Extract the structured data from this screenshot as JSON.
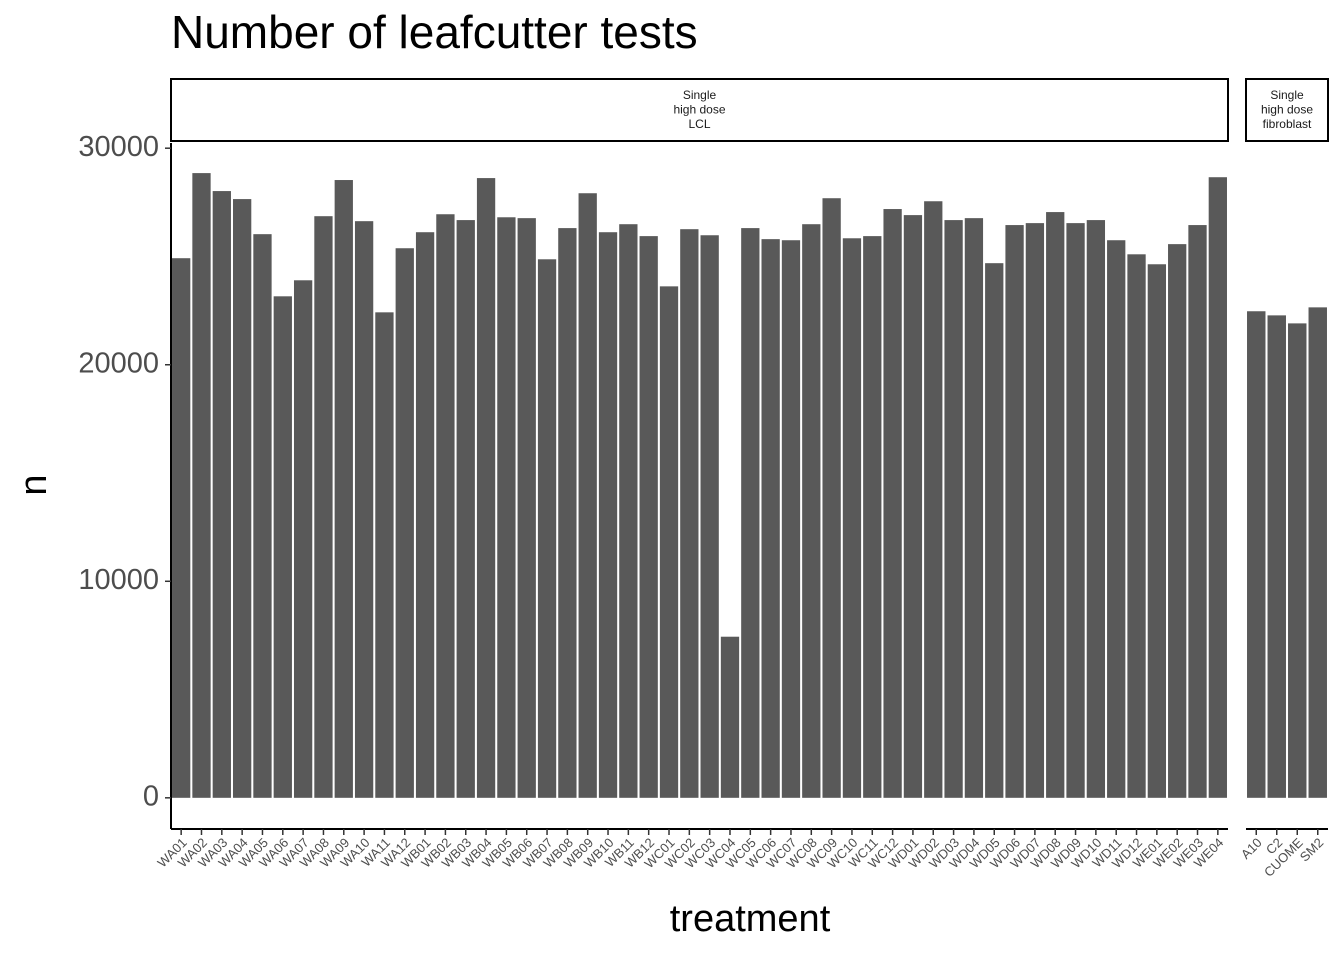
{
  "chart_data": {
    "type": "bar",
    "title": "Number of leafcutter tests",
    "x_label": "treatment",
    "y_label": "n",
    "ylim": [
      -1440,
      30240
    ],
    "yticks": [
      0,
      10000,
      20000,
      30000
    ],
    "color": "#595959",
    "panels": [
      {
        "strip": [
          "Single",
          "high dose",
          "LCL"
        ],
        "categories": [
          "WA01",
          "WA02",
          "WA03",
          "WA04",
          "WA05",
          "WA06",
          "WA07",
          "WA08",
          "WA09",
          "WA10",
          "WA11",
          "WA12",
          "WB01",
          "WB02",
          "WB03",
          "WB04",
          "WB05",
          "WB06",
          "WB07",
          "WB08",
          "WB09",
          "WB10",
          "WB11",
          "WB12",
          "WC01",
          "WC02",
          "WC03",
          "WC04",
          "WC05",
          "WC06",
          "WC07",
          "WC08",
          "WC09",
          "WC10",
          "WC11",
          "WC12",
          "WD01",
          "WD02",
          "WD03",
          "WD04",
          "WD05",
          "WD06",
          "WD07",
          "WD08",
          "WD09",
          "WD10",
          "WD11",
          "WD12",
          "WE01",
          "WE02",
          "WE03",
          "WE04"
        ],
        "values": [
          24920,
          28850,
          28020,
          27650,
          26030,
          23160,
          23900,
          26860,
          28530,
          26630,
          22420,
          25380,
          26120,
          26950,
          26680,
          28620,
          26810,
          26770,
          24870,
          26310,
          27920,
          26120,
          26490,
          25940,
          23620,
          26260,
          25980,
          7440,
          26310,
          25800,
          25750,
          26490,
          27690,
          25840,
          25940,
          27190,
          26910,
          27550,
          26680,
          26770,
          24690,
          26450,
          26540,
          27050,
          26540,
          26680,
          25750,
          25100,
          24640,
          25570,
          26450,
          28660
        ]
      },
      {
        "strip": [
          "Single",
          "high dose",
          "fibroblast"
        ],
        "categories": [
          "A10",
          "C2",
          "CUOME",
          "SM2"
        ],
        "values": [
          22470,
          22280,
          21910,
          22650
        ]
      }
    ]
  }
}
